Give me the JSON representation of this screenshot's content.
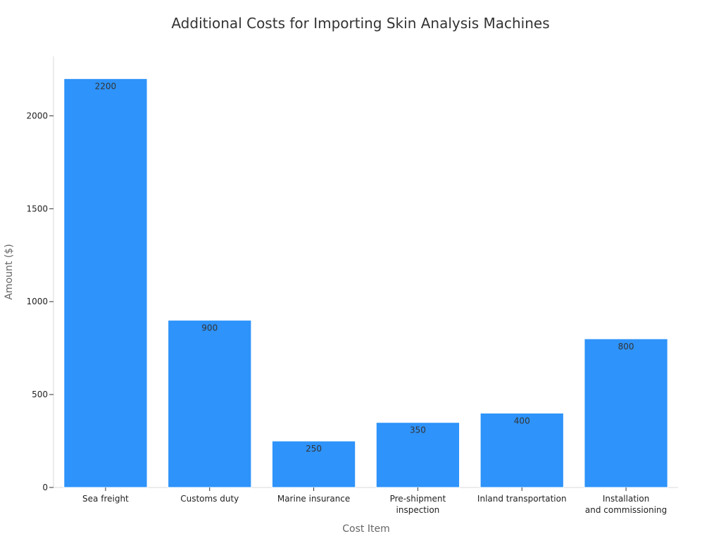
{
  "chart_data": {
    "type": "bar",
    "title": "Additional Costs for Importing Skin Analysis Machines",
    "xlabel": "Cost Item",
    "ylabel": "Amount ($)",
    "categories": [
      [
        "Sea freight"
      ],
      [
        "Customs duty"
      ],
      [
        "Marine insurance"
      ],
      [
        "Pre-shipment",
        "inspection"
      ],
      [
        "Inland transportation"
      ],
      [
        "Installation",
        "and commissioning"
      ]
    ],
    "values": [
      2200,
      900,
      250,
      350,
      400,
      800
    ],
    "ylim": [
      0,
      2320
    ],
    "yticks": [
      0,
      500,
      1000,
      1500,
      2000
    ],
    "bar_color": "#2e93fa",
    "grid": false,
    "legend": "none"
  }
}
